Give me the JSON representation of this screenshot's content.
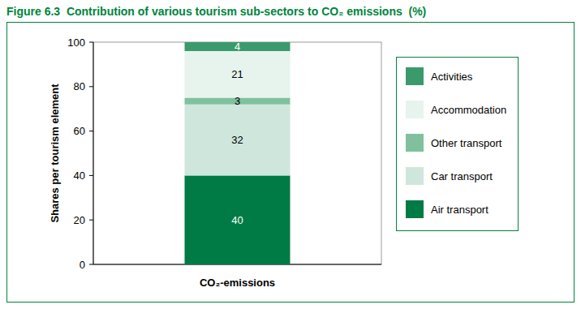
{
  "chart_data": {
    "type": "bar",
    "stacked": true,
    "data_labels": true,
    "grid": false,
    "legend": "right",
    "title": "Figure 6.3  Contribution of various tourism sub-sectors to CO₂ emissions  (%)",
    "y_label": "Shares per tourism element",
    "categories": [
      "CO₂-emissions"
    ],
    "ylim": [
      0,
      100
    ],
    "yticks": [
      0,
      20,
      40,
      60,
      80,
      100
    ],
    "series": [
      {
        "name": "Air transport",
        "color": "#007b45",
        "values": [
          40
        ]
      },
      {
        "name": "Car transport",
        "color": "#cfe6dc",
        "values": [
          32
        ]
      },
      {
        "name": "Other transport",
        "color": "#80c09f",
        "values": [
          3
        ]
      },
      {
        "name": "Accommodation",
        "color": "#e7f4ed",
        "values": [
          21
        ]
      },
      {
        "name": "Activities",
        "color": "#3a9a6c",
        "values": [
          4
        ]
      }
    ]
  }
}
